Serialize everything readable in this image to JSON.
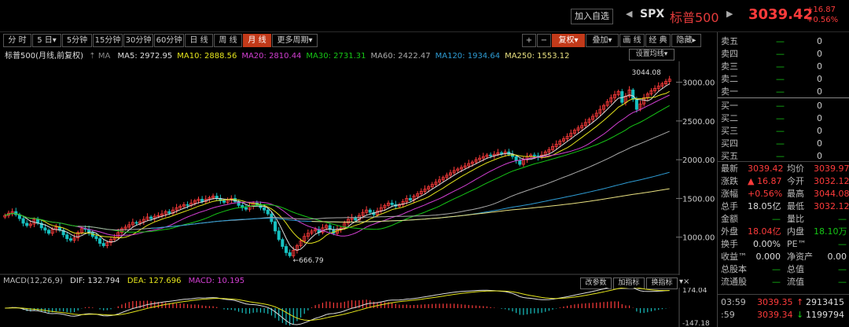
{
  "header": {
    "add_watchlist": "加入自选",
    "symbol": "SPX",
    "name": "标普500",
    "price": "3039.42",
    "change": "+16.87",
    "change_pct": "+0.56%",
    "nav_prev": "◀",
    "nav_next": "▶"
  },
  "toolbar": {
    "periods": [
      "分 时",
      "5 日▾",
      "5分钟",
      "15分钟",
      "30分钟",
      "60分钟",
      "日 线",
      "周 线",
      "月 线",
      "更多周期▾"
    ],
    "active_period": "月 线",
    "right": [
      "+",
      "−",
      "复权▾",
      "叠加▾",
      "画 线",
      "经 典",
      "隐藏▸"
    ]
  },
  "ma_legend": {
    "title": "标普500(月线,前复权)",
    "ma_label": "MA",
    "items": [
      {
        "label": "MA5: 2972.95",
        "color": "#dddddd"
      },
      {
        "label": "MA10: 2888.56",
        "color": "#e4e41c"
      },
      {
        "label": "MA20: 2810.44",
        "color": "#d23fd2"
      },
      {
        "label": "MA30: 2731.31",
        "color": "#16c616"
      },
      {
        "label": "MA60: 2422.47",
        "color": "#aaaaaa"
      },
      {
        "label": "MA120: 1934.64",
        "color": "#2e9cd4"
      },
      {
        "label": "MA250: 1553.12",
        "color": "#e8e080"
      }
    ],
    "settings": "设置均线▾"
  },
  "chart_data": {
    "type": "candlestick",
    "y_ticks": [
      "3000.00",
      "2500.00",
      "2000.00",
      "1500.00",
      "1000.00"
    ],
    "y_range": [
      510,
      3270
    ],
    "high_annotation": "3044.08",
    "low_annotation": "666.79",
    "closes": [
      1280,
      1310,
      1330,
      1290,
      1240,
      1180,
      1150,
      1170,
      1230,
      1180,
      1120,
      1090,
      1050,
      1100,
      1130,
      1090,
      1030,
      980,
      960,
      990,
      1060,
      1110,
      1100,
      1060,
      1010,
      980,
      920,
      890,
      930,
      970,
      1000,
      1060,
      1110,
      1130,
      1160,
      1190,
      1180,
      1200,
      1230,
      1260,
      1240,
      1270,
      1280,
      1300,
      1330,
      1310,
      1350,
      1380,
      1400,
      1420,
      1410,
      1440,
      1470,
      1490,
      1460,
      1490,
      1510,
      1530,
      1500,
      1470,
      1450,
      1480,
      1500,
      1460,
      1410,
      1380,
      1360,
      1400,
      1440,
      1420,
      1380,
      1350,
      1300,
      1200,
      1080,
      970,
      880,
      800,
      760,
      830,
      890,
      950,
      1010,
      1050,
      1080,
      1100,
      1060,
      1120,
      1150,
      1100,
      1050,
      1100,
      1120,
      1180,
      1230,
      1250,
      1220,
      1280,
      1320,
      1350,
      1320,
      1290,
      1340,
      1380,
      1410,
      1440,
      1420,
      1400,
      1420,
      1460,
      1500,
      1480,
      1530,
      1560,
      1590,
      1620,
      1650,
      1680,
      1710,
      1740,
      1770,
      1800,
      1830,
      1860,
      1880,
      1900,
      1920,
      1950,
      1970,
      2000,
      2020,
      2040,
      2060,
      2050,
      2070,
      2090,
      2080,
      2100,
      2070,
      2040,
      1990,
      1940,
      2000,
      2040,
      2060,
      2050,
      2030,
      2060,
      2100,
      2130,
      2170,
      2200,
      2240,
      2270,
      2300,
      2340,
      2380,
      2410,
      2440,
      2480,
      2520,
      2560,
      2600,
      2650,
      2700,
      2750,
      2800,
      2840,
      2880,
      2740,
      2820,
      2900,
      2780,
      2650,
      2720,
      2800,
      2850,
      2890,
      2920,
      2950,
      2980,
      3010,
      3040
    ],
    "indicators": {
      "ma5": "2972.95",
      "ma10": "2888.56",
      "ma20": "2810.44",
      "ma30": "2731.31",
      "ma60": "2422.47",
      "ma120": "1934.64",
      "ma250": "1553.12"
    }
  },
  "macd": {
    "title": "MACD(12,26,9)",
    "dif": "DIF: 132.794",
    "dea": "DEA: 127.696",
    "macd": "MACD: 10.195",
    "top_tick": "174.04",
    "bottom_tick": "-147.18",
    "buttons": [
      "改参数",
      "加指标",
      "换指标"
    ]
  },
  "orderbook": {
    "sell": [
      {
        "label": "卖五",
        "price": "—",
        "vol": "0"
      },
      {
        "label": "卖四",
        "price": "—",
        "vol": "0"
      },
      {
        "label": "卖三",
        "price": "—",
        "vol": "0"
      },
      {
        "label": "卖二",
        "price": "—",
        "vol": "0"
      },
      {
        "label": "卖一",
        "price": "—",
        "vol": "0"
      }
    ],
    "buy": [
      {
        "label": "买一",
        "price": "—",
        "vol": "0"
      },
      {
        "label": "买二",
        "price": "—",
        "vol": "0"
      },
      {
        "label": "买三",
        "price": "—",
        "vol": "0"
      },
      {
        "label": "买四",
        "price": "—",
        "vol": "0"
      },
      {
        "label": "买五",
        "price": "—",
        "vol": "0"
      }
    ]
  },
  "quote": {
    "latest_k": "最新",
    "latest_v": "3039.42",
    "avg_k": "均价",
    "avg_v": "3039.97",
    "chg_k": "涨跌",
    "chg_v": "▲ 16.87",
    "open_k": "今开",
    "open_v": "3032.12",
    "pct_k": "涨幅",
    "pct_v": "+0.56%",
    "high_k": "最高",
    "high_v": "3044.08",
    "vol_k": "总手",
    "vol_v": "18.05亿",
    "low_k": "最低",
    "low_v": "3032.12",
    "amt_k": "金额",
    "amt_v": "—",
    "ratio_k": "量比",
    "ratio_v": "—",
    "out_k": "外盘",
    "out_v": "18.04亿",
    "in_k": "内盘",
    "in_v": "18.10万",
    "turn_k": "换手",
    "turn_v": "0.00%",
    "pe_k": "PE™",
    "pe_v": "—",
    "eps_k": "收益™",
    "eps_v": "0.000",
    "nav_k": "净资产",
    "nav_v": "0.00",
    "cap_k": "总股本",
    "cap_v": "—",
    "mktv_k": "总值",
    "mktv_v": "—",
    "float_k": "流通股",
    "float_v": "—",
    "fmktv_k": "流值",
    "fmktv_v": "—"
  },
  "ticks": [
    {
      "time": "03:59",
      "price": "3039.35",
      "arrow": "↑",
      "vol": "2913415",
      "dir": "up"
    },
    {
      "time": ":59",
      "price": "3039.34",
      "arrow": "↓",
      "vol": "1199794",
      "dir": "down"
    }
  ]
}
